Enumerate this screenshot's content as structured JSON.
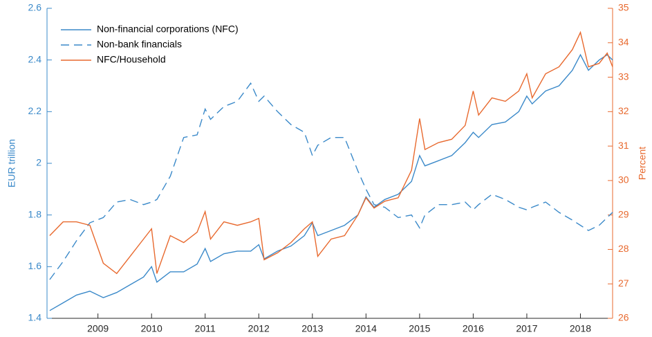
{
  "chart_data": {
    "type": "line",
    "ylabel": "EUR trillion",
    "y2label": "Percent",
    "x": [
      2008.1,
      2008.35,
      2008.6,
      2008.85,
      2009.1,
      2009.35,
      2009.6,
      2009.85,
      2010.0,
      2010.1,
      2010.35,
      2010.6,
      2010.85,
      2011.0,
      2011.1,
      2011.35,
      2011.6,
      2011.85,
      2012.0,
      2012.1,
      2012.35,
      2012.6,
      2012.85,
      2013.0,
      2013.1,
      2013.35,
      2013.6,
      2013.85,
      2014.0,
      2014.15,
      2014.35,
      2014.6,
      2014.85,
      2015.0,
      2015.1,
      2015.35,
      2015.6,
      2015.85,
      2016.0,
      2016.1,
      2016.35,
      2016.6,
      2016.85,
      2017.0,
      2017.1,
      2017.35,
      2017.6,
      2017.85,
      2018.0,
      2018.15,
      2018.35,
      2018.5,
      2018.6
    ],
    "series": [
      {
        "name": "Non-financial corporations (NFC)",
        "color": "#3a89c9",
        "style": "solid",
        "values": [
          1.43,
          1.46,
          1.49,
          1.505,
          1.48,
          1.5,
          1.53,
          1.56,
          1.6,
          1.54,
          1.58,
          1.58,
          1.61,
          1.67,
          1.62,
          1.65,
          1.66,
          1.66,
          1.685,
          1.63,
          1.66,
          1.68,
          1.72,
          1.77,
          1.72,
          1.74,
          1.76,
          1.8,
          1.87,
          1.83,
          1.86,
          1.88,
          1.93,
          2.03,
          1.99,
          2.01,
          2.03,
          2.08,
          2.12,
          2.1,
          2.15,
          2.16,
          2.2,
          2.26,
          2.23,
          2.28,
          2.3,
          2.36,
          2.42,
          2.36,
          2.4,
          2.42,
          2.4
        ]
      },
      {
        "name": "Non-bank financials",
        "color": "#3a89c9",
        "style": "dashed",
        "values": [
          1.55,
          1.62,
          1.7,
          1.77,
          1.79,
          1.85,
          1.86,
          1.84,
          1.85,
          1.86,
          1.95,
          2.1,
          2.11,
          2.21,
          2.17,
          2.22,
          2.24,
          2.31,
          2.24,
          2.26,
          2.2,
          2.15,
          2.12,
          2.03,
          2.07,
          2.1,
          2.1,
          1.97,
          1.9,
          1.84,
          1.83,
          1.79,
          1.8,
          1.75,
          1.8,
          1.84,
          1.84,
          1.85,
          1.82,
          1.84,
          1.88,
          1.86,
          1.83,
          1.82,
          1.83,
          1.85,
          1.81,
          1.78,
          1.76,
          1.74,
          1.76,
          1.79,
          1.81
        ]
      },
      {
        "name": "NFC/Household",
        "color": "#e8692e",
        "style": "solid",
        "axis": "y2",
        "values": [
          28.4,
          28.8,
          28.8,
          28.7,
          27.6,
          27.3,
          27.8,
          28.3,
          28.6,
          27.3,
          28.4,
          28.2,
          28.5,
          29.1,
          28.3,
          28.8,
          28.7,
          28.8,
          28.9,
          27.7,
          27.9,
          28.2,
          28.6,
          28.8,
          27.8,
          28.3,
          28.4,
          29.0,
          29.5,
          29.2,
          29.4,
          29.5,
          30.3,
          31.8,
          30.9,
          31.1,
          31.2,
          31.6,
          32.6,
          31.9,
          32.4,
          32.3,
          32.6,
          33.1,
          32.4,
          33.1,
          33.3,
          33.8,
          34.3,
          33.3,
          33.4,
          33.7,
          33.3
        ]
      }
    ],
    "xlim": [
      2008.05,
      2018.6
    ],
    "xticks": [
      2009,
      2010,
      2011,
      2012,
      2013,
      2014,
      2015,
      2016,
      2017,
      2018
    ],
    "ylim": [
      1.4,
      2.6
    ],
    "yticks": [
      1.4,
      1.6,
      1.8,
      2,
      2.2,
      2.4,
      2.6
    ],
    "y2lim": [
      26,
      35
    ],
    "y2ticks": [
      26,
      27,
      28,
      29,
      30,
      31,
      32,
      33,
      34,
      35
    ],
    "ycolor": "#3a89c9",
    "y2color": "#e8692e",
    "legend": "upper-left"
  }
}
